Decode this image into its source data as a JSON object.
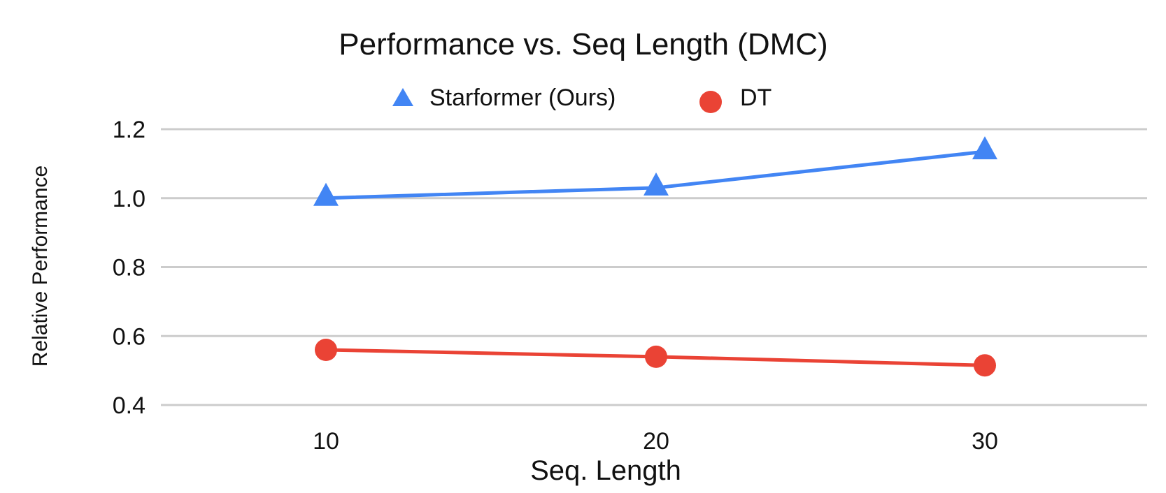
{
  "chart_data": {
    "type": "line",
    "title": "Performance vs. Seq Length (DMC)",
    "xlabel": "Seq. Length",
    "ylabel": "Relative Performance",
    "categories": [
      "10",
      "20",
      "30"
    ],
    "yticks": [
      "0.4",
      "0.6",
      "0.8",
      "1.0",
      "1.2"
    ],
    "ylim": [
      0.4,
      1.2
    ],
    "grid": true,
    "legend_position": "top-center",
    "series": [
      {
        "name": "Starformer (Ours)",
        "values": [
          1.0,
          1.03,
          1.135
        ],
        "color": "#4285f4",
        "marker": "triangle"
      },
      {
        "name": "DT",
        "values": [
          0.56,
          0.54,
          0.515
        ],
        "color": "#ea4335",
        "marker": "circle"
      }
    ]
  }
}
